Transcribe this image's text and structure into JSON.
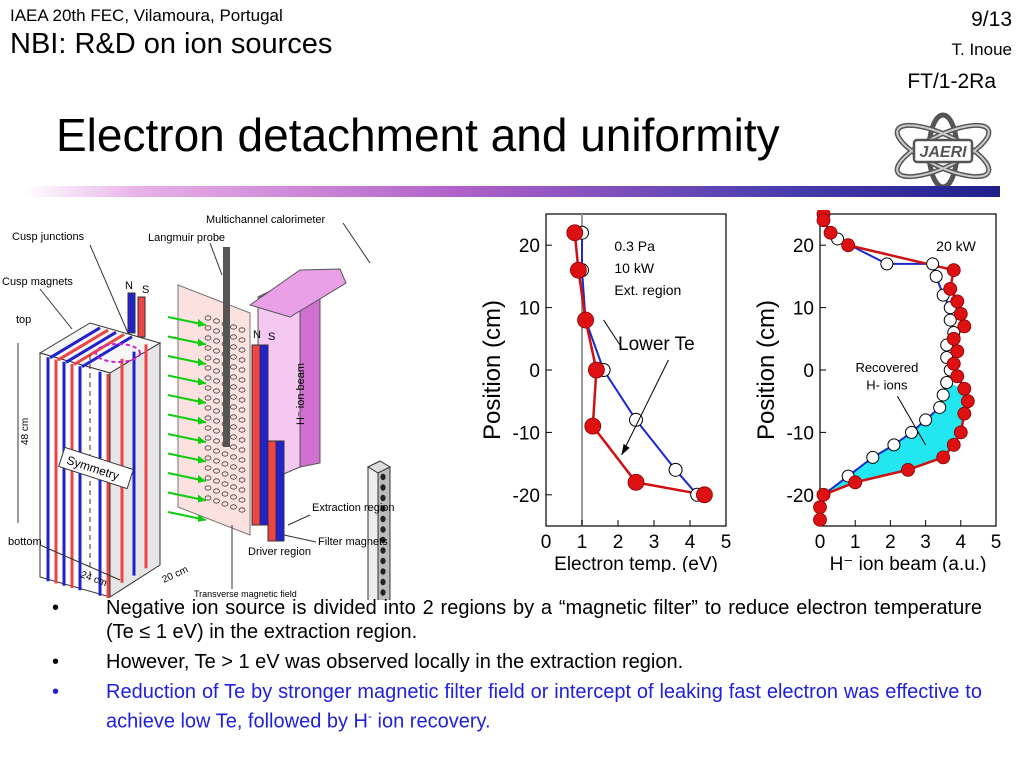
{
  "header": {
    "conference": "IAEA 20th FEC, Vilamoura, Portugal",
    "topic": "NBI: R&D on ion sources",
    "page": "9/13",
    "author": "T. Inoue",
    "paper_code": "FT/1-2Ra",
    "logo_text": "JAERI"
  },
  "title": "Electron detachment and uniformity",
  "diagram": {
    "labels": {
      "calorimeter": "Multichannel calorimeter",
      "langmuir": "Langmuir probe",
      "cusp_junctions": "Cusp junctions",
      "cusp_magnets": "Cusp magnets",
      "top": "top",
      "bottom": "bottom",
      "height": "48 cm",
      "width": "24 cm",
      "depth": "20 cm",
      "symmetry": "Symmetry",
      "n1": "N",
      "s1": "S",
      "n2": "N",
      "s2": "S",
      "beam": "H⁻ ion beam",
      "extraction": "Extraction region",
      "filter": "Filter magnets",
      "driver": "Driver region",
      "transverse": "Transverse magnetic field"
    }
  },
  "chart_data": [
    {
      "type": "scatter",
      "xlabel": "Electron temp. (eV)",
      "ylabel": "Position (cm)",
      "xlim": [
        0,
        5
      ],
      "ylim": [
        -25,
        25
      ],
      "xticks": [
        0,
        1,
        2,
        3,
        4,
        5
      ],
      "yticks": [
        20,
        10,
        0,
        -10,
        -20
      ],
      "annotations": [
        "0.3 Pa",
        "10 kW",
        "Ext. region",
        "Lower Te"
      ],
      "vline_x": 1.0,
      "series": [
        {
          "marker": "open",
          "color": "#1a2ad0",
          "points": [
            [
              1.0,
              22
            ],
            [
              1.0,
              16
            ],
            [
              1.1,
              8
            ],
            [
              1.6,
              0
            ],
            [
              2.5,
              -8
            ],
            [
              3.6,
              -16
            ],
            [
              4.2,
              -20
            ]
          ]
        },
        {
          "marker": "filled",
          "color": "#d01010",
          "points": [
            [
              0.8,
              22
            ],
            [
              0.9,
              16
            ],
            [
              1.1,
              8
            ],
            [
              1.4,
              0
            ],
            [
              1.3,
              -9
            ],
            [
              2.5,
              -18
            ],
            [
              4.4,
              -20
            ]
          ]
        }
      ]
    },
    {
      "type": "scatter",
      "xlabel": "H⁻ ion beam (a.u.)",
      "ylabel": "Position (cm)",
      "xlim": [
        0,
        5
      ],
      "ylim": [
        -25,
        25
      ],
      "xticks": [
        0,
        1,
        2,
        3,
        4,
        5
      ],
      "yticks": [
        20,
        10,
        0,
        -10,
        -20
      ],
      "annotations": [
        "20 kW",
        "Recovered H- ions"
      ],
      "series": [
        {
          "marker": "open",
          "color": "#1a2ad0",
          "points": [
            [
              0.3,
              22
            ],
            [
              0.5,
              21
            ],
            [
              1.9,
              17
            ],
            [
              3.2,
              17
            ],
            [
              3.3,
              15
            ],
            [
              3.5,
              12
            ],
            [
              3.7,
              10
            ],
            [
              3.7,
              8
            ],
            [
              3.8,
              6
            ],
            [
              3.6,
              4
            ],
            [
              3.6,
              2
            ],
            [
              3.7,
              0
            ],
            [
              3.6,
              -2
            ],
            [
              3.5,
              -4
            ],
            [
              3.4,
              -6
            ],
            [
              3.0,
              -8
            ],
            [
              2.6,
              -10
            ],
            [
              2.1,
              -12
            ],
            [
              1.5,
              -14
            ],
            [
              0.8,
              -17
            ],
            [
              0.1,
              -20
            ],
            [
              0.0,
              -22
            ]
          ]
        },
        {
          "marker": "filled",
          "color": "#d01010",
          "points": [
            [
              0.1,
              25
            ],
            [
              0.1,
              24
            ],
            [
              0.3,
              22
            ],
            [
              0.8,
              20
            ],
            [
              3.8,
              16
            ],
            [
              3.7,
              13
            ],
            [
              3.9,
              11
            ],
            [
              4.0,
              9
            ],
            [
              4.1,
              7
            ],
            [
              3.8,
              5
            ],
            [
              3.9,
              3
            ],
            [
              3.8,
              1
            ],
            [
              3.9,
              -1
            ],
            [
              4.1,
              -3
            ],
            [
              4.2,
              -5
            ],
            [
              4.1,
              -7
            ],
            [
              4.0,
              -10
            ],
            [
              3.8,
              -12
            ],
            [
              3.5,
              -14
            ],
            [
              2.5,
              -16
            ],
            [
              1.0,
              -18
            ],
            [
              0.1,
              -20
            ],
            [
              0.0,
              -22
            ],
            [
              0.0,
              -24
            ]
          ]
        }
      ]
    }
  ],
  "bullets": [
    {
      "mark": "•",
      "text": "Negative ion source is divided into 2 regions by a “magnetic filter” to reduce electron temperature (Te ≤ 1 eV) in the extraction region.",
      "color": "#000000"
    },
    {
      "mark": "•",
      "text": "However, Te > 1 eV was observed locally in the extraction region.",
      "color": "#000000"
    },
    {
      "mark": "•",
      "text": "Reduction of Te by stronger magnetic filter field or intercept of leaking fast electron was effective to achieve low Te, followed by H",
      "sup": "-",
      "text_after": " ion recovery.",
      "color": "#2020e0"
    }
  ]
}
